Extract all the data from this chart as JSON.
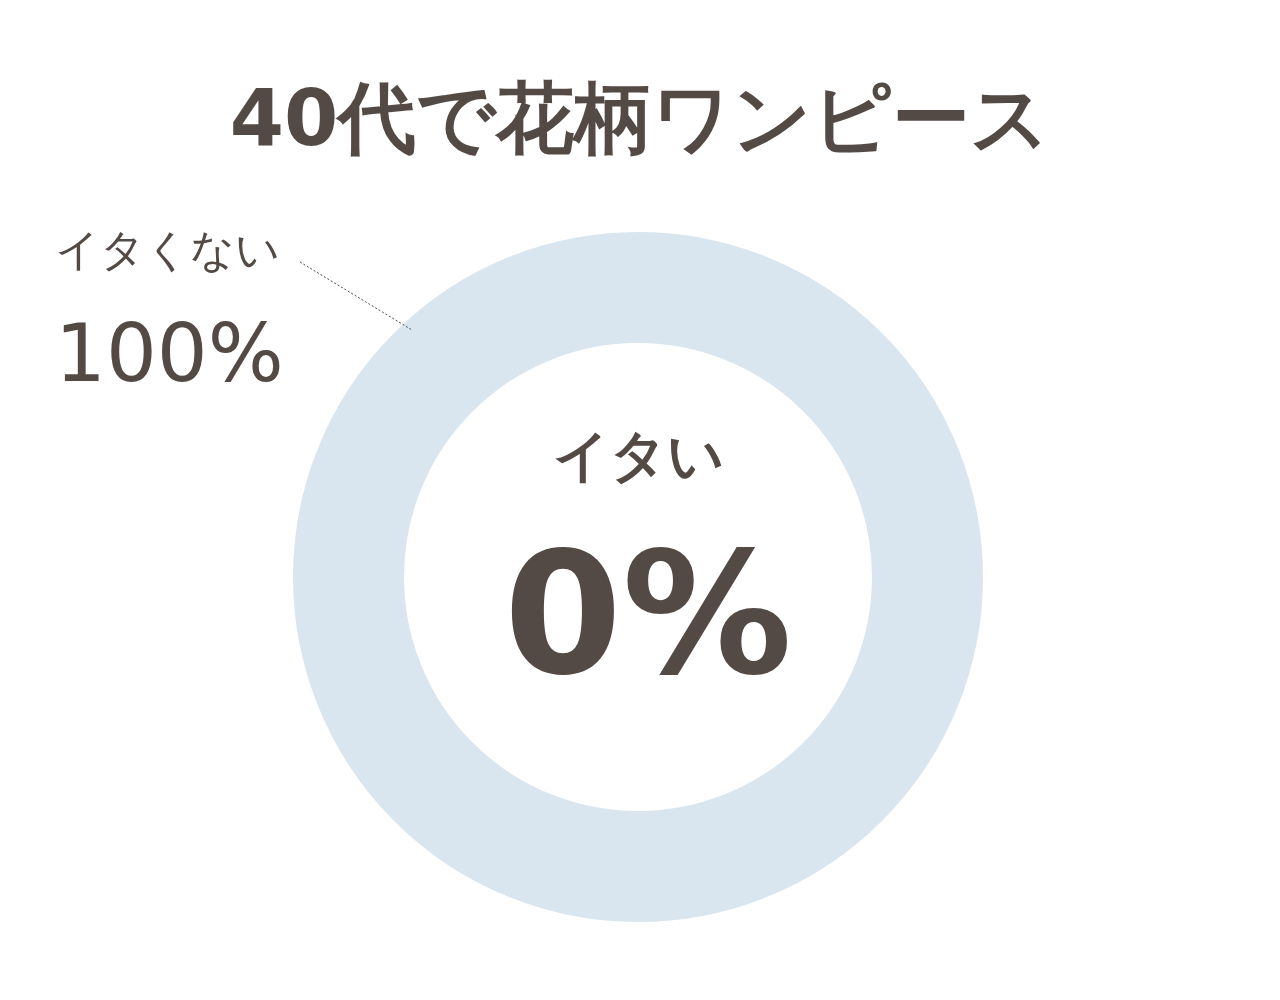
{
  "chart_data": {
    "type": "donut",
    "title": "40代で花柄ワンピース",
    "categories": [
      "イタい",
      "イタくない"
    ],
    "values": [
      0,
      100
    ],
    "colors": [
      "#8fcfd6",
      "#d9e6f0"
    ],
    "value_labels": [
      "0%",
      "100%"
    ]
  }
}
